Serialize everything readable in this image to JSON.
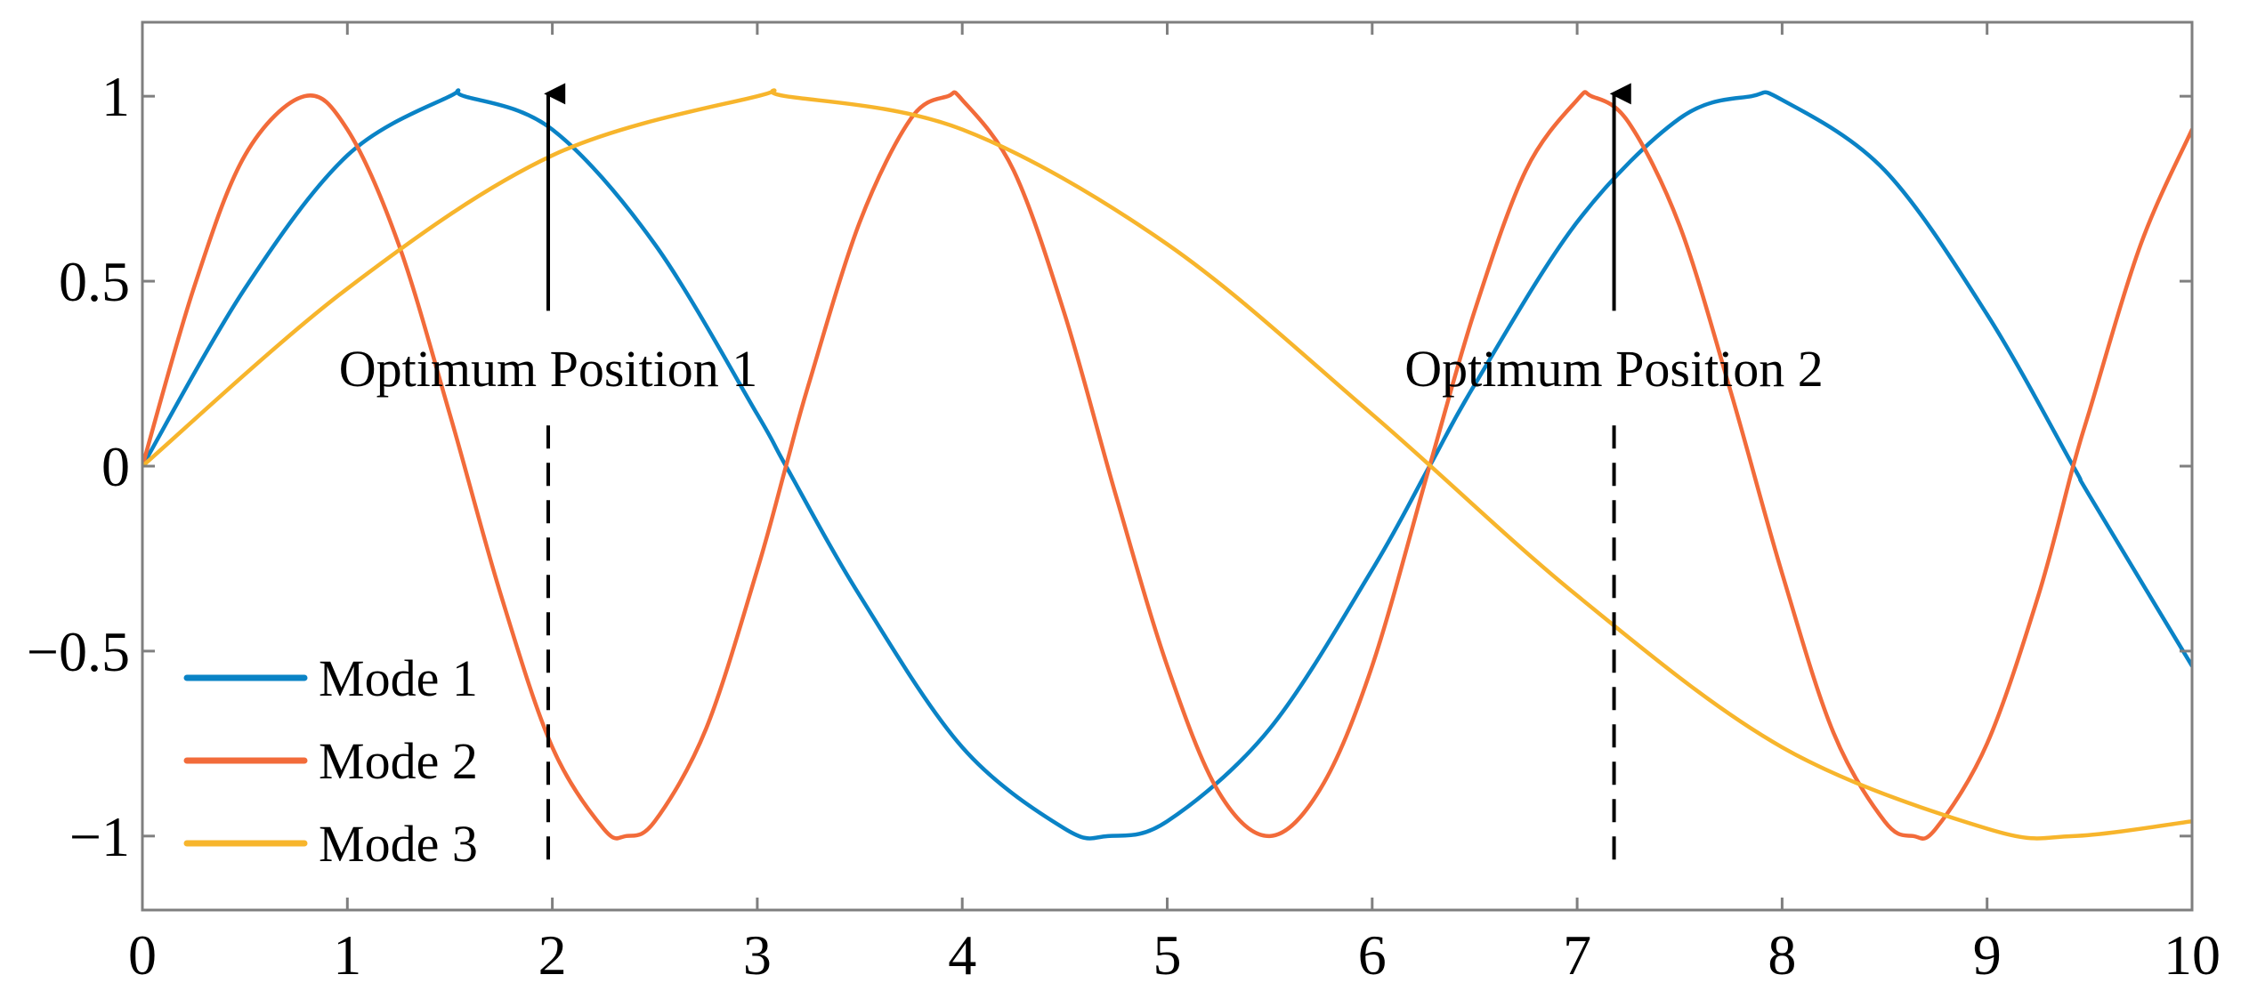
{
  "chart_data": {
    "type": "line",
    "title": "",
    "xlabel": "",
    "ylabel": "",
    "xlim": [
      0,
      10
    ],
    "ylim": [
      -1.2,
      1.2
    ],
    "x_ticks": [
      0,
      1,
      2,
      3,
      4,
      5,
      6,
      7,
      8,
      9,
      10
    ],
    "x_tick_labels": [
      "0",
      "1",
      "2",
      "3",
      "4",
      "5",
      "6",
      "7",
      "8",
      "9",
      "10"
    ],
    "y_ticks": [
      1,
      0.5,
      0,
      -0.5,
      -1
    ],
    "y_tick_labels": [
      "1",
      "0.5",
      "0",
      "−0.5",
      "−1"
    ],
    "grid": false,
    "legend_position": "bottom-left",
    "series": [
      {
        "name": "Mode 1",
        "color": "#0a83c6",
        "x": [
          0,
          0.5,
          1,
          1.5,
          1.57,
          2,
          2.5,
          3,
          3.14,
          3.5,
          4,
          4.5,
          4.71,
          5,
          5.5,
          6,
          6.28,
          6.5,
          7,
          7.5,
          7.85,
          8,
          8.5,
          9,
          9.42,
          9.5,
          10
        ],
        "values": [
          0,
          0.48,
          0.84,
          1.0,
          1.0,
          0.91,
          0.6,
          0.14,
          0,
          -0.35,
          -0.76,
          -0.98,
          -1.0,
          -0.96,
          -0.71,
          -0.28,
          0,
          0.22,
          0.66,
          0.94,
          1.0,
          0.99,
          0.8,
          0.41,
          0,
          -0.08,
          -0.54
        ]
      },
      {
        "name": "Mode 2",
        "color": "#f26b3a",
        "x": [
          0,
          0.25,
          0.5,
          0.79,
          1,
          1.25,
          1.5,
          1.75,
          2,
          2.25,
          2.36,
          2.5,
          2.75,
          3,
          3.14,
          3.25,
          3.5,
          3.75,
          3.93,
          4,
          4.25,
          4.5,
          4.75,
          5,
          5.25,
          5.5,
          5.75,
          6,
          6.28,
          6.5,
          6.75,
          7,
          7.07,
          7.25,
          7.5,
          7.75,
          8,
          8.25,
          8.5,
          8.64,
          8.75,
          9,
          9.25,
          9.42,
          9.5,
          9.75,
          10
        ],
        "values": [
          0,
          0.48,
          0.84,
          1.0,
          0.91,
          0.6,
          0.14,
          -0.35,
          -0.76,
          -0.98,
          -1.0,
          -0.96,
          -0.71,
          -0.28,
          0,
          0.22,
          0.66,
          0.94,
          1.0,
          0.99,
          0.8,
          0.41,
          -0.08,
          -0.54,
          -0.88,
          -1.0,
          -0.87,
          -0.54,
          0,
          0.42,
          0.8,
          0.99,
          1.0,
          0.93,
          0.65,
          0.2,
          -0.29,
          -0.72,
          -0.96,
          -1.0,
          -0.98,
          -0.75,
          -0.35,
          0,
          0.15,
          0.6,
          0.91
        ]
      },
      {
        "name": "Mode 3",
        "color": "#f7b52c",
        "x": [
          0,
          1,
          2,
          3,
          3.14,
          4,
          5,
          6,
          7,
          8,
          9,
          9.42,
          10
        ],
        "values": [
          0,
          0.48,
          0.84,
          1.0,
          1.0,
          0.91,
          0.6,
          0.14,
          -0.35,
          -0.76,
          -0.98,
          -1.0,
          -0.96
        ]
      }
    ],
    "annotations": [
      {
        "label": "Optimum Position 1",
        "x": 1.98,
        "arrow_from_y": 0.42,
        "arrow_to_y": 1.05,
        "dash_from_y": 0.11,
        "dash_to_y": -1.07
      },
      {
        "label": "Optimum Position 2",
        "x": 7.18,
        "arrow_from_y": 0.42,
        "arrow_to_y": 1.05,
        "dash_from_y": 0.11,
        "dash_to_y": -1.07
      }
    ]
  }
}
